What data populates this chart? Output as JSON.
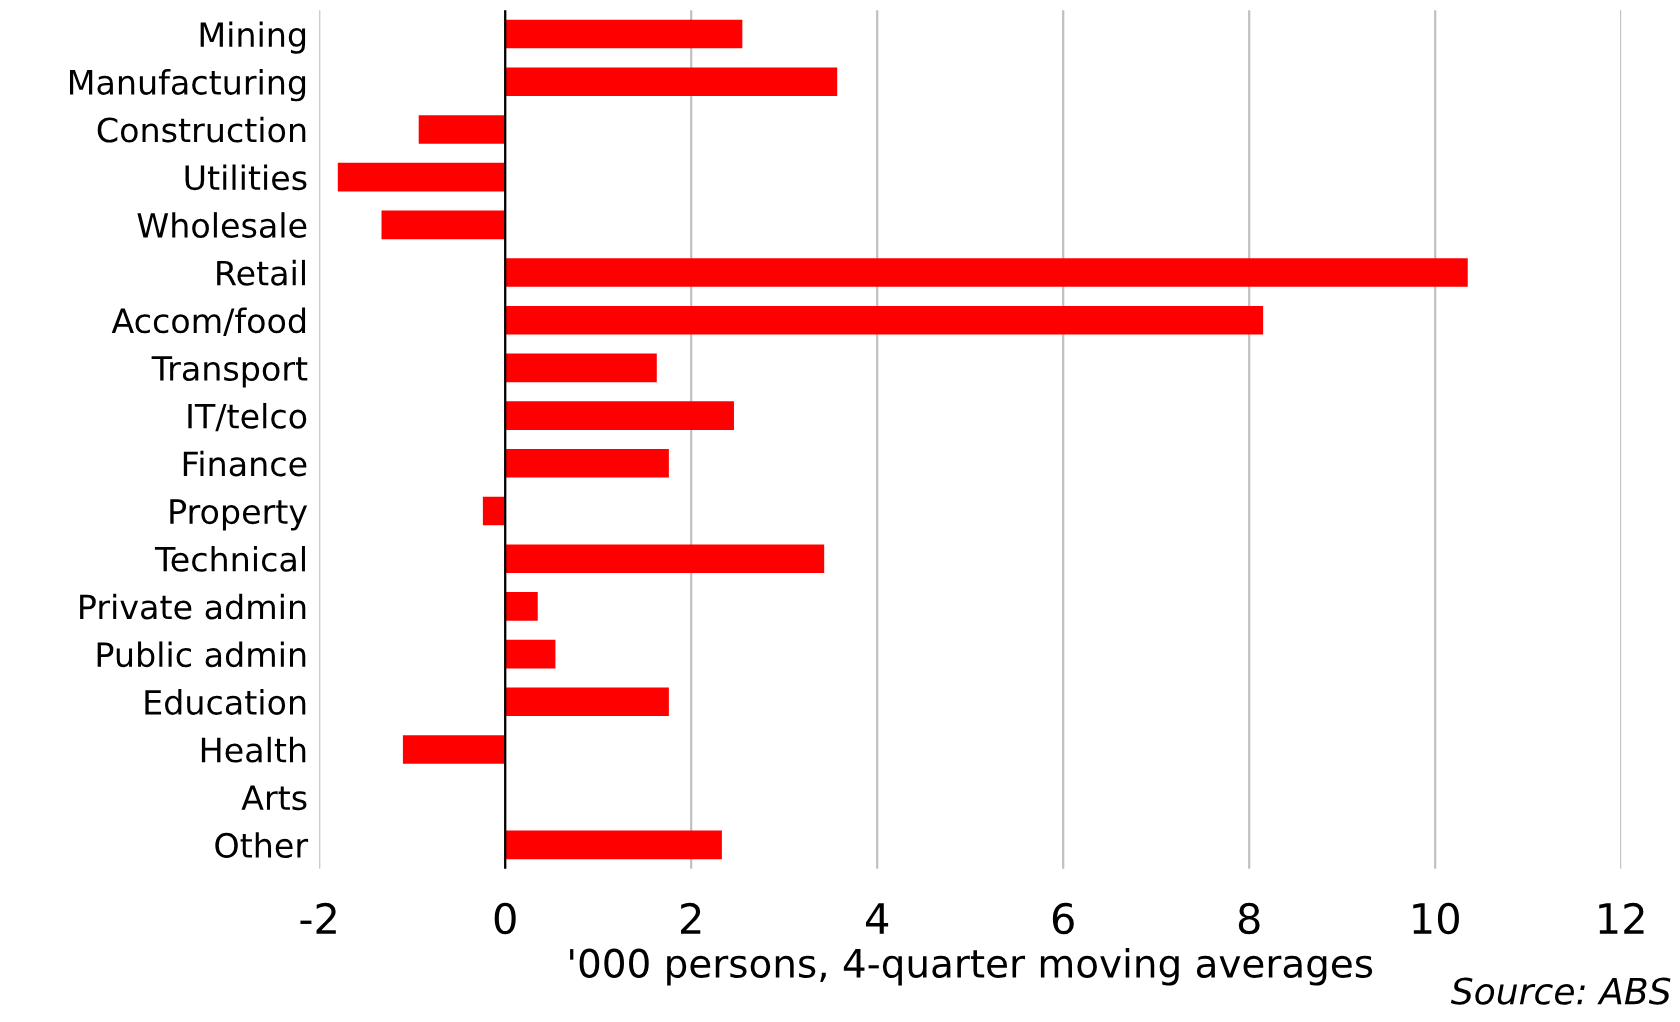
{
  "chart_data": {
    "type": "bar",
    "orientation": "horizontal",
    "categories": [
      "Mining",
      "Manufacturing",
      "Construction",
      "Utilities",
      "Wholesale",
      "Retail",
      "Accom/food",
      "Transport",
      "IT/telco",
      "Finance",
      "Property",
      "Technical",
      "Private admin",
      "Public admin",
      "Education",
      "Health",
      "Arts",
      "Other"
    ],
    "values": [
      2.55,
      3.57,
      -0.93,
      -1.8,
      -1.33,
      10.35,
      8.15,
      1.63,
      2.46,
      1.76,
      -0.24,
      3.43,
      0.35,
      0.54,
      1.76,
      -1.1,
      0,
      2.33
    ],
    "color": "#ff0000",
    "xlim": [
      -2,
      12
    ],
    "xticks": [
      -2,
      0,
      2,
      4,
      6,
      8,
      10,
      12
    ],
    "xlabel": "'000 persons, 4-quarter moving averages",
    "annotations": [
      "Source: ABS"
    ],
    "grid": "x",
    "legend": false
  }
}
